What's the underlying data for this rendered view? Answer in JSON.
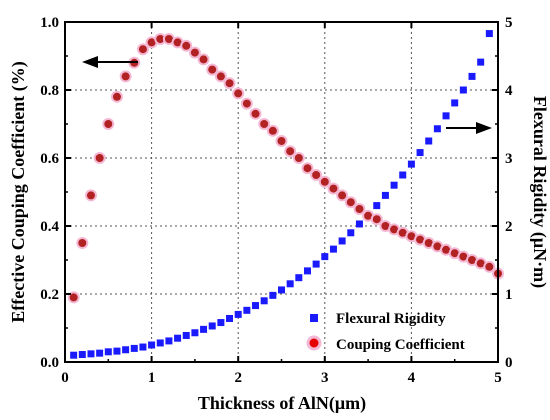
{
  "chart_data": {
    "type": "scatter",
    "xlabel": "Thickness of AlN(μm)",
    "ylabel_left": "Effective Couping Coefficient (%)",
    "ylabel_right": "Flexural Rigidity (μN·m)",
    "xlim": [
      0,
      5
    ],
    "ylim_left": [
      0.0,
      1.0
    ],
    "ylim_right": [
      0,
      5
    ],
    "x_ticks": [
      "0",
      "1",
      "2",
      "3",
      "4",
      "5"
    ],
    "y_left_ticks": [
      "0.0",
      "0.2",
      "0.4",
      "0.6",
      "0.8",
      "1.0"
    ],
    "y_right_ticks": [
      "0",
      "1",
      "2",
      "3",
      "4",
      "5"
    ],
    "grid": true,
    "legend_position": "bottom-right",
    "series": [
      {
        "name": "Flexural Rigidity",
        "axis": "right",
        "marker": "square",
        "color": "#1a1aff",
        "x": [
          0.1,
          0.2,
          0.3,
          0.4,
          0.5,
          0.6,
          0.7,
          0.8,
          0.9,
          1.0,
          1.1,
          1.2,
          1.3,
          1.4,
          1.5,
          1.6,
          1.7,
          1.8,
          1.9,
          2.0,
          2.1,
          2.2,
          2.3,
          2.4,
          2.5,
          2.6,
          2.7,
          2.8,
          2.9,
          3.0,
          3.1,
          3.2,
          3.3,
          3.4,
          3.5,
          3.6,
          3.7,
          3.8,
          3.9,
          4.0,
          4.1,
          4.2,
          4.3,
          4.4,
          4.5,
          4.6,
          4.7,
          4.8,
          4.9
        ],
        "y": [
          0.1,
          0.11,
          0.12,
          0.13,
          0.15,
          0.16,
          0.18,
          0.2,
          0.22,
          0.25,
          0.28,
          0.31,
          0.35,
          0.39,
          0.43,
          0.48,
          0.53,
          0.58,
          0.64,
          0.7,
          0.76,
          0.83,
          0.9,
          0.98,
          1.06,
          1.15,
          1.24,
          1.34,
          1.44,
          1.55,
          1.66,
          1.78,
          1.9,
          2.03,
          2.16,
          2.3,
          2.45,
          2.6,
          2.75,
          2.91,
          3.08,
          3.25,
          3.43,
          3.62,
          3.81,
          4.0,
          4.2,
          4.41,
          4.83
        ]
      },
      {
        "name": "Couping Coefficient",
        "axis": "left",
        "marker": "circle",
        "color": "#b22222",
        "x": [
          0.1,
          0.2,
          0.3,
          0.4,
          0.5,
          0.6,
          0.7,
          0.8,
          0.9,
          1.0,
          1.1,
          1.2,
          1.3,
          1.4,
          1.5,
          1.6,
          1.7,
          1.8,
          1.9,
          2.0,
          2.1,
          2.2,
          2.3,
          2.4,
          2.5,
          2.6,
          2.7,
          2.8,
          2.9,
          3.0,
          3.1,
          3.2,
          3.3,
          3.4,
          3.5,
          3.6,
          3.7,
          3.8,
          3.9,
          4.0,
          4.1,
          4.2,
          4.3,
          4.4,
          4.5,
          4.6,
          4.7,
          4.8,
          4.9,
          5.0
        ],
        "y": [
          0.19,
          0.35,
          0.49,
          0.6,
          0.7,
          0.78,
          0.84,
          0.88,
          0.92,
          0.94,
          0.95,
          0.95,
          0.94,
          0.93,
          0.91,
          0.89,
          0.86,
          0.84,
          0.82,
          0.79,
          0.76,
          0.73,
          0.7,
          0.68,
          0.65,
          0.62,
          0.6,
          0.57,
          0.55,
          0.53,
          0.51,
          0.49,
          0.47,
          0.45,
          0.43,
          0.42,
          0.4,
          0.39,
          0.38,
          0.37,
          0.36,
          0.35,
          0.34,
          0.33,
          0.32,
          0.31,
          0.3,
          0.29,
          0.28,
          0.26
        ]
      }
    ],
    "annotations": [
      {
        "type": "arrow",
        "direction": "left",
        "points_to": "left-axis"
      },
      {
        "type": "arrow",
        "direction": "right",
        "points_to": "right-axis"
      }
    ]
  }
}
